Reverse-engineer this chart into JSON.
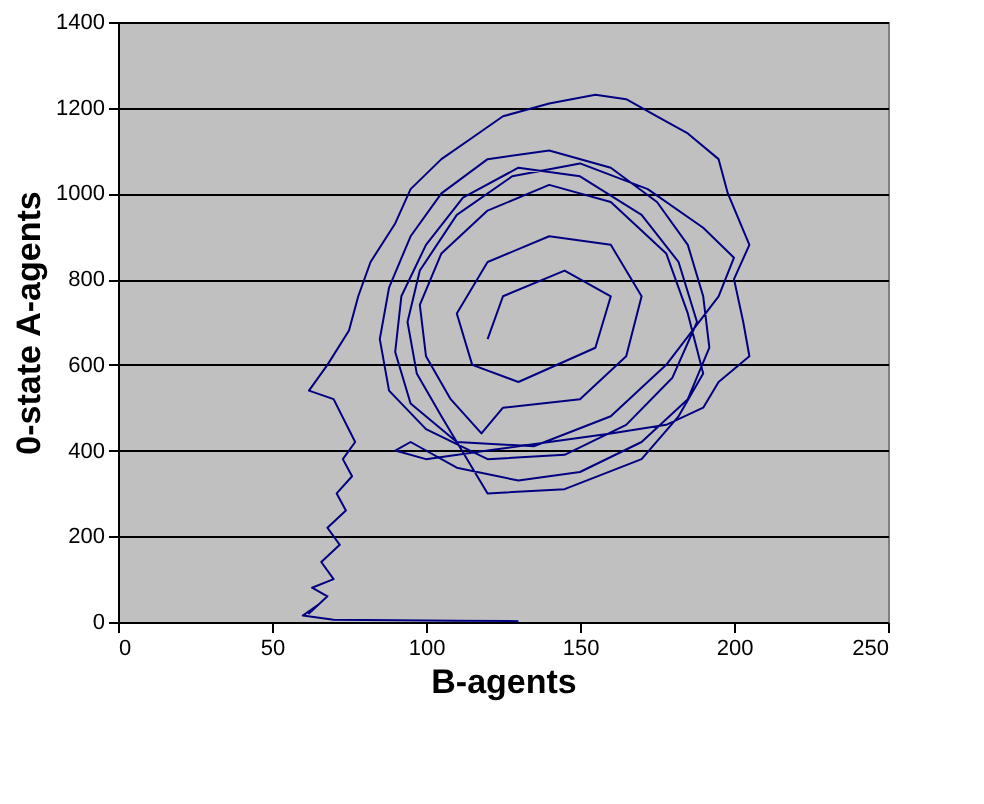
{
  "chart_data": {
    "type": "line",
    "xlabel": "B-agents",
    "ylabel": "0-state A-agents",
    "xlim": [
      0,
      250
    ],
    "xticks": [
      0,
      50,
      100,
      150,
      200,
      250
    ],
    "ylim": [
      0,
      1400
    ],
    "yticks": [
      0,
      200,
      400,
      600,
      800,
      1000,
      1200,
      1400
    ],
    "grid": "y",
    "marker": "none",
    "line_style": "solid",
    "series": [
      {
        "color": "#000080",
        "x": [
          130,
          110,
          90,
          70,
          60,
          65,
          62,
          68,
          63,
          70,
          66,
          72,
          68,
          74,
          71,
          76,
          73,
          77,
          70,
          62,
          68,
          75,
          78,
          82,
          90,
          95,
          105,
          115,
          125,
          140,
          155,
          165,
          175,
          185,
          195,
          198,
          205,
          200,
          203,
          205,
          195,
          190,
          178,
          160,
          140,
          120,
          100,
          90,
          95,
          110,
          130,
          150,
          170,
          185,
          192,
          190,
          185,
          175,
          160,
          140,
          120,
          105,
          95,
          88,
          85,
          88,
          100,
          120,
          145,
          165,
          180,
          188,
          182,
          170,
          150,
          130,
          112,
          100,
          92,
          90,
          95,
          110,
          135,
          160,
          178,
          195,
          200,
          190,
          172,
          150,
          128,
          110,
          98,
          94,
          97,
          105,
          120,
          145,
          170,
          182,
          190,
          185,
          178,
          160,
          140,
          120,
          105,
          98,
          100,
          108,
          118,
          125,
          150,
          165,
          170,
          160,
          140,
          120,
          110,
          115,
          130,
          155,
          160,
          145,
          125,
          120
        ],
        "values": [
          2,
          3,
          4,
          5,
          15,
          40,
          20,
          60,
          80,
          100,
          140,
          180,
          220,
          260,
          300,
          340,
          380,
          420,
          520,
          540,
          600,
          680,
          760,
          840,
          930,
          1010,
          1080,
          1130,
          1180,
          1210,
          1230,
          1220,
          1180,
          1140,
          1080,
          1000,
          880,
          800,
          700,
          620,
          560,
          500,
          460,
          440,
          420,
          400,
          380,
          400,
          420,
          360,
          330,
          350,
          420,
          520,
          640,
          760,
          880,
          980,
          1060,
          1100,
          1080,
          1000,
          900,
          780,
          660,
          540,
          450,
          380,
          390,
          460,
          570,
          700,
          840,
          950,
          1040,
          1060,
          990,
          880,
          760,
          630,
          510,
          420,
          410,
          480,
          600,
          760,
          850,
          920,
          1010,
          1070,
          1040,
          950,
          820,
          700,
          580,
          480,
          300,
          310,
          380,
          480,
          580,
          720,
          860,
          980,
          1020,
          960,
          860,
          740,
          620,
          520,
          440,
          500,
          520,
          620,
          760,
          880,
          900,
          840,
          720,
          600,
          560,
          640,
          760,
          820,
          760,
          660
        ]
      }
    ]
  }
}
